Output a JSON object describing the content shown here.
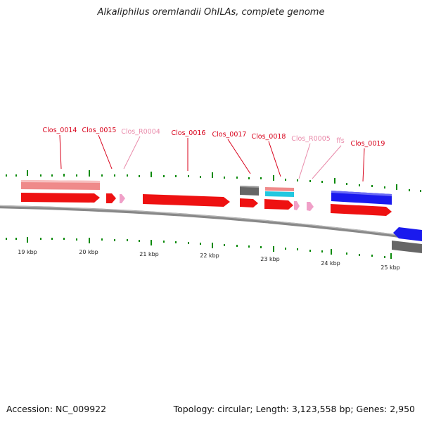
{
  "title": "Alkaliphilus oremlandii OhILAs, complete genome",
  "accession": "Accession: NC_009922",
  "summary": "Topology: circular; Length: 3,123,558 bp; Genes: 2,950",
  "colors": {
    "cds": "#ee1111",
    "gene": "#ef8a8a",
    "rna": "#f0a0c8",
    "blue": "#1a1aee",
    "gray": "#666666",
    "cyan": "#22c8e0",
    "tick": "#0a8a0a",
    "label_red": "#d8001a",
    "label_pink": "#e98aaa"
  },
  "axis": {
    "ticks": [
      {
        "label": "19 kbp",
        "pos": 19000
      },
      {
        "label": "20 kbp",
        "pos": 20000
      },
      {
        "label": "21 kbp",
        "pos": 21000
      },
      {
        "label": "22 kbp",
        "pos": 22000
      },
      {
        "label": "23 kbp",
        "pos": 23000
      },
      {
        "label": "24 kbp",
        "pos": 24000
      },
      {
        "label": "25 kbp",
        "pos": 25000
      }
    ]
  },
  "features": [
    {
      "name": "Clos_0014",
      "color": "label_red"
    },
    {
      "name": "Clos_0015",
      "color": "label_red"
    },
    {
      "name": "Clos_R0004",
      "color": "label_pink"
    },
    {
      "name": "Clos_0016",
      "color": "label_red"
    },
    {
      "name": "Clos_0017",
      "color": "label_red"
    },
    {
      "name": "Clos_0018",
      "color": "label_red"
    },
    {
      "name": "Clos_R0005",
      "color": "label_pink"
    },
    {
      "name": "ffs",
      "color": "label_pink"
    },
    {
      "name": "Clos_0019",
      "color": "label_red"
    }
  ]
}
